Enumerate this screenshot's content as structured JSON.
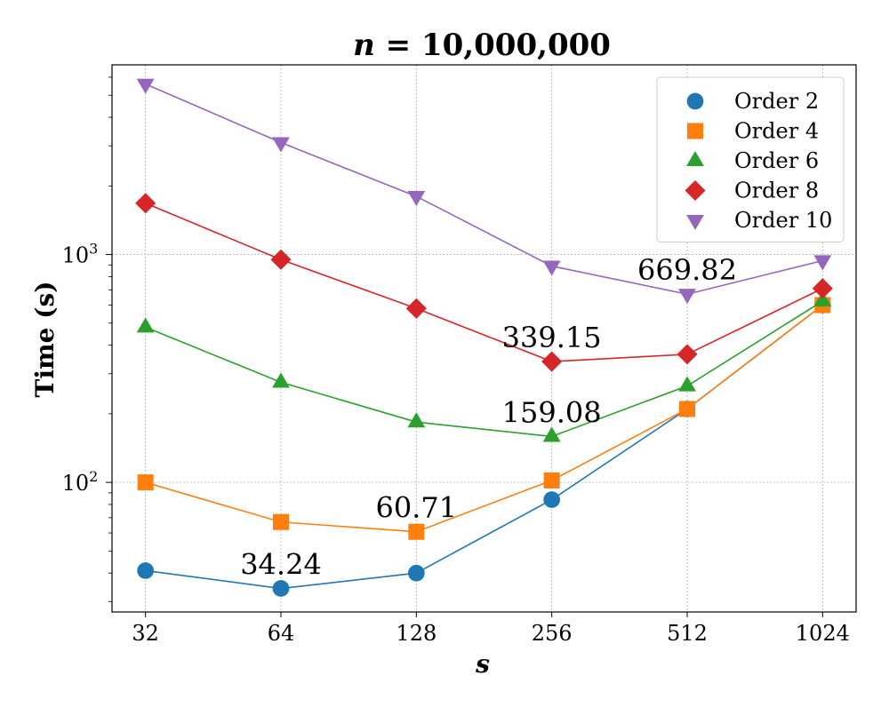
{
  "chart_data": {
    "type": "line",
    "title": "n = 10,000,000",
    "title_var": "n",
    "title_value": "10,000,000",
    "xlabel": "s",
    "ylabel": "Time (s)",
    "x_scale": "log2",
    "y_scale": "log10",
    "ylim": [
      27,
      6800
    ],
    "categories": [
      "32",
      "64",
      "128",
      "256",
      "512",
      "1024"
    ],
    "x": [
      32,
      64,
      128,
      256,
      512,
      1024
    ],
    "y_ticks": [
      {
        "value": 100,
        "base": "10",
        "exp": "2"
      },
      {
        "value": 1000,
        "base": "10",
        "exp": "3"
      }
    ],
    "grid": true,
    "legend_position": "top-right",
    "series": [
      {
        "name": "Order 2",
        "color": "#1f77b4",
        "marker": "circle",
        "values": [
          41,
          34.24,
          40,
          84,
          210,
          600
        ]
      },
      {
        "name": "Order 4",
        "color": "#ff7f0e",
        "marker": "square",
        "values": [
          100,
          67,
          60.71,
          102,
          210,
          600
        ]
      },
      {
        "name": "Order 6",
        "color": "#2ca02c",
        "marker": "triangle-up",
        "values": [
          480,
          275,
          184,
          159.08,
          265,
          625
        ]
      },
      {
        "name": "Order 8",
        "color": "#d62728",
        "marker": "diamond",
        "values": [
          1680,
          950,
          580,
          339.15,
          365,
          710
        ]
      },
      {
        "name": "Order 10",
        "color": "#9467bd",
        "marker": "triangle-down",
        "values": [
          5600,
          3100,
          1800,
          890,
          669.82,
          940
        ]
      }
    ],
    "annotations": [
      {
        "text": "34.24",
        "x": 64,
        "y": 34.24
      },
      {
        "text": "60.71",
        "x": 128,
        "y": 60.71
      },
      {
        "text": "159.08",
        "x": 256,
        "y": 159.08
      },
      {
        "text": "339.15",
        "x": 256,
        "y": 339.15
      },
      {
        "text": "669.82",
        "x": 512,
        "y": 669.82
      }
    ]
  }
}
